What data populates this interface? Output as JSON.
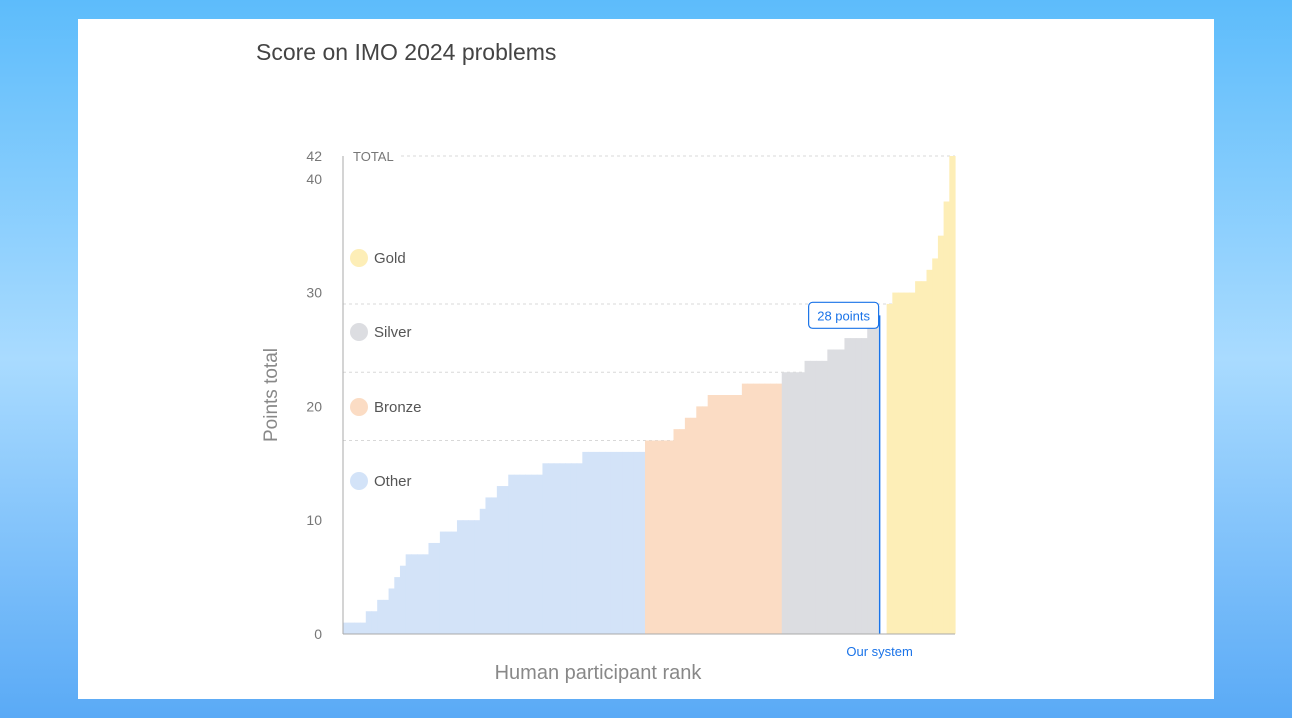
{
  "chart_data": {
    "type": "bar",
    "title": "Score on IMO 2024 problems",
    "xlabel": "Human participant rank",
    "ylabel": "Points total",
    "ylim": [
      0,
      42
    ],
    "yticks": [
      0,
      10,
      20,
      30,
      40,
      42
    ],
    "total_label": "TOTAL",
    "thresholds": {
      "bronze": 17,
      "silver": 23,
      "gold": 29
    },
    "legend": [
      {
        "name": "Gold",
        "color": "#fdeeb7"
      },
      {
        "name": "Silver",
        "color": "#dcdde1"
      },
      {
        "name": "Bronze",
        "color": "#fbdcc4"
      },
      {
        "name": "Other",
        "color": "#d3e3f8"
      }
    ],
    "series": [
      {
        "name": "Other",
        "color": "#d3e3f8",
        "values": [
          1,
          1,
          1,
          1,
          2,
          2,
          3,
          3,
          4,
          5,
          6,
          7,
          7,
          7,
          7,
          8,
          8,
          9,
          9,
          9,
          10,
          10,
          10,
          10,
          11,
          12,
          12,
          13,
          13,
          14,
          14,
          14,
          14,
          14,
          14,
          15,
          15,
          15,
          15,
          15,
          15,
          15,
          16,
          16,
          16,
          16,
          16,
          16,
          16,
          16,
          16,
          16,
          16
        ]
      },
      {
        "name": "Bronze",
        "color": "#fbdcc4",
        "values": [
          17,
          17,
          17,
          17,
          17,
          18,
          18,
          19,
          19,
          20,
          20,
          21,
          21,
          21,
          21,
          21,
          21,
          22,
          22,
          22,
          22,
          22,
          22,
          22
        ]
      },
      {
        "name": "Silver",
        "color": "#dcdde1",
        "values": [
          23,
          23,
          23,
          23,
          24,
          24,
          24,
          24,
          25,
          25,
          25,
          26,
          26,
          26,
          26,
          27,
          27
        ]
      },
      {
        "name": "Gold",
        "color": "#fdeeb7",
        "values": [
          29,
          30,
          30,
          30,
          30,
          31,
          31,
          32,
          33,
          35,
          38,
          42
        ]
      }
    ],
    "our_system": {
      "label": "Our system",
      "score_label": "28 points",
      "score": 28,
      "color": "#1a73e8"
    }
  }
}
